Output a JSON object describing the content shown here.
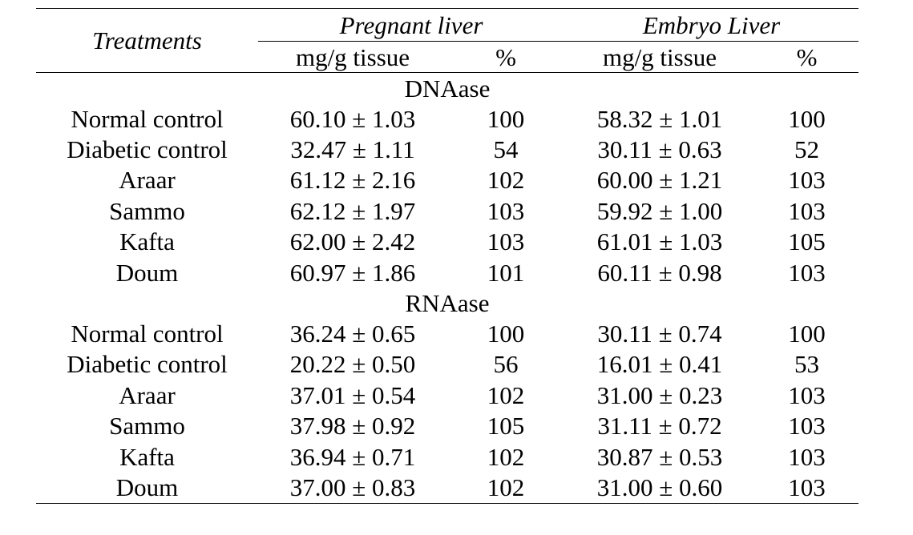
{
  "header": {
    "treatments": "Treatments",
    "group_pregnant": "Pregnant liver",
    "group_embryo": "Embryo Liver",
    "unit_mg": "mg/g tissue",
    "unit_pct": "%"
  },
  "sections": [
    {
      "title": "DNAase",
      "rows": [
        {
          "treatment": "Normal control",
          "preg_mg": "60.10 ± 1.03",
          "preg_pct": "100",
          "emb_mg": "58.32 ± 1.01",
          "emb_pct": "100"
        },
        {
          "treatment": "Diabetic control",
          "preg_mg": "32.47 ± 1.11",
          "preg_pct": "54",
          "emb_mg": "30.11 ± 0.63",
          "emb_pct": "52"
        },
        {
          "treatment": "Araar",
          "preg_mg": "61.12 ± 2.16",
          "preg_pct": "102",
          "emb_mg": "60.00 ± 1.21",
          "emb_pct": "103"
        },
        {
          "treatment": "Sammo",
          "preg_mg": "62.12 ± 1.97",
          "preg_pct": "103",
          "emb_mg": "59.92 ± 1.00",
          "emb_pct": "103"
        },
        {
          "treatment": "Kafta",
          "preg_mg": "62.00 ± 2.42",
          "preg_pct": "103",
          "emb_mg": "61.01 ± 1.03",
          "emb_pct": "105"
        },
        {
          "treatment": "Doum",
          "preg_mg": "60.97 ± 1.86",
          "preg_pct": "101",
          "emb_mg": "60.11 ± 0.98",
          "emb_pct": "103"
        }
      ]
    },
    {
      "title": "RNAase",
      "rows": [
        {
          "treatment": "Normal control",
          "preg_mg": "36.24 ± 0.65",
          "preg_pct": "100",
          "emb_mg": "30.11 ± 0.74",
          "emb_pct": "100"
        },
        {
          "treatment": "Diabetic control",
          "preg_mg": "20.22 ± 0.50",
          "preg_pct": "56",
          "emb_mg": "16.01 ± 0.41",
          "emb_pct": "53"
        },
        {
          "treatment": "Araar",
          "preg_mg": "37.01 ± 0.54",
          "preg_pct": "102",
          "emb_mg": "31.00 ± 0.23",
          "emb_pct": "103"
        },
        {
          "treatment": "Sammo",
          "preg_mg": "37.98 ± 0.92",
          "preg_pct": "105",
          "emb_mg": "31.11 ± 0.72",
          "emb_pct": "103"
        },
        {
          "treatment": "Kafta",
          "preg_mg": "36.94 ± 0.71",
          "preg_pct": "102",
          "emb_mg": "30.87 ± 0.53",
          "emb_pct": "103"
        },
        {
          "treatment": "Doum",
          "preg_mg": "37.00 ± 0.83",
          "preg_pct": "102",
          "emb_mg": "31.00 ± 0.60",
          "emb_pct": "103"
        }
      ]
    }
  ]
}
